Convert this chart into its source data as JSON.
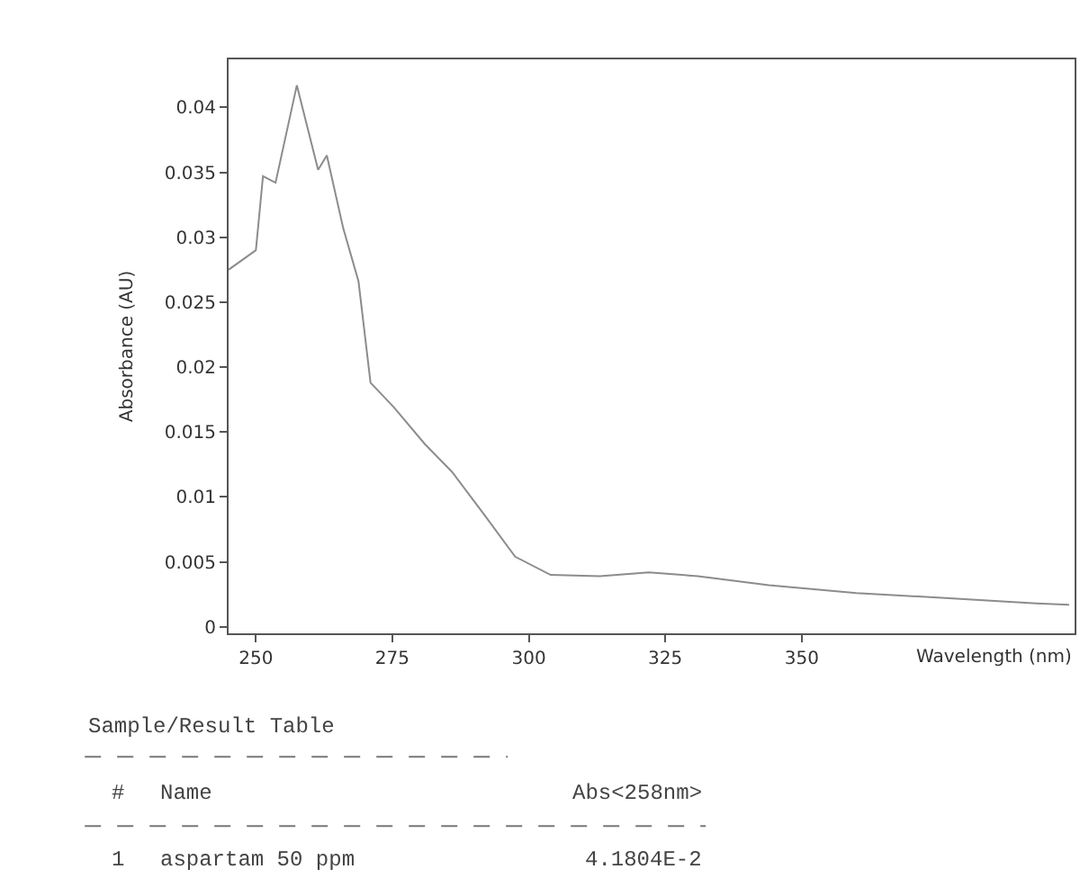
{
  "chart_data": {
    "type": "line",
    "xlabel": "Wavelength (nm)",
    "ylabel": "Absorbance (AU)",
    "x": [
      245,
      250,
      251.3,
      253.6,
      257.5,
      261.4,
      263,
      266,
      268.8,
      271,
      275.3,
      280.9,
      286,
      291.9,
      297.5,
      304,
      313,
      322,
      331,
      344,
      360,
      377,
      393,
      399
    ],
    "series": [
      {
        "color": "#8c8c8c",
        "values": [
          0.0275,
          0.029,
          0.0347,
          0.0342,
          0.0417,
          0.0352,
          0.0363,
          0.0307,
          0.0266,
          0.0188,
          0.0169,
          0.0141,
          0.0119,
          0.0086,
          0.0054,
          0.004,
          0.0039,
          0.0042,
          0.0039,
          0.0032,
          0.0026,
          0.0022,
          0.0018,
          0.0017
        ]
      }
    ],
    "xlim": [
      245,
      400
    ],
    "ylim": [
      -0.0005,
      0.0437
    ],
    "xticks": [
      250,
      275,
      300,
      325,
      350
    ],
    "yticks": [
      0,
      0.005,
      0.01,
      0.015,
      0.02,
      0.025,
      0.03,
      0.035,
      0.04
    ],
    "marker": "none",
    "line_style": "solid",
    "annotations": [
      "Sample/Result Table",
      "#",
      "Name",
      "Abs<258nm>",
      "1",
      "aspartam 50 ppm",
      "4.1804E-2"
    ]
  }
}
